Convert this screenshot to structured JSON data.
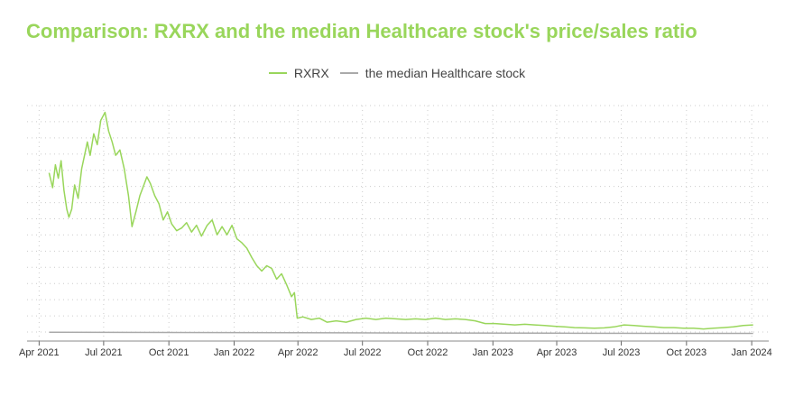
{
  "chart_data": {
    "type": "line",
    "title": "Comparison: RXRX and the median Healthcare stock's price/sales ratio",
    "xlabel": "",
    "ylabel": "",
    "x_ticks": [
      "Apr 2021",
      "Jul 2021",
      "Oct 2021",
      "Jan 2022",
      "Apr 2022",
      "Jul 2022",
      "Oct 2022",
      "Jan 2023",
      "Apr 2023",
      "Jul 2023",
      "Oct 2023",
      "Jan 2024"
    ],
    "x_range": [
      "2021-03-15",
      "2024-01-25"
    ],
    "ylim": [
      0,
      1750
    ],
    "grid": true,
    "legend_position": "top-center",
    "series": [
      {
        "name": "RXRX",
        "color": "#99d65b",
        "points": [
          [
            "2021-04-15",
            1250
          ],
          [
            "2021-04-20",
            1140
          ],
          [
            "2021-04-24",
            1310
          ],
          [
            "2021-04-28",
            1210
          ],
          [
            "2021-05-02",
            1340
          ],
          [
            "2021-05-06",
            1120
          ],
          [
            "2021-05-10",
            980
          ],
          [
            "2021-05-13",
            920
          ],
          [
            "2021-05-17",
            980
          ],
          [
            "2021-05-21",
            1160
          ],
          [
            "2021-05-26",
            1060
          ],
          [
            "2021-05-31",
            1280
          ],
          [
            "2021-06-04",
            1380
          ],
          [
            "2021-06-08",
            1480
          ],
          [
            "2021-06-12",
            1380
          ],
          [
            "2021-06-17",
            1540
          ],
          [
            "2021-06-22",
            1460
          ],
          [
            "2021-06-27",
            1640
          ],
          [
            "2021-07-03",
            1700
          ],
          [
            "2021-07-08",
            1560
          ],
          [
            "2021-07-13",
            1480
          ],
          [
            "2021-07-18",
            1380
          ],
          [
            "2021-07-24",
            1420
          ],
          [
            "2021-07-30",
            1280
          ],
          [
            "2021-08-05",
            1080
          ],
          [
            "2021-08-10",
            850
          ],
          [
            "2021-08-16",
            970
          ],
          [
            "2021-08-21",
            1080
          ],
          [
            "2021-08-26",
            1150
          ],
          [
            "2021-08-31",
            1220
          ],
          [
            "2021-09-05",
            1170
          ],
          [
            "2021-09-11",
            1080
          ],
          [
            "2021-09-17",
            1020
          ],
          [
            "2021-09-23",
            900
          ],
          [
            "2021-09-29",
            960
          ],
          [
            "2021-10-05",
            870
          ],
          [
            "2021-10-12",
            820
          ],
          [
            "2021-10-19",
            840
          ],
          [
            "2021-10-26",
            880
          ],
          [
            "2021-11-02",
            810
          ],
          [
            "2021-11-09",
            860
          ],
          [
            "2021-11-16",
            780
          ],
          [
            "2021-11-24",
            860
          ],
          [
            "2021-12-01",
            900
          ],
          [
            "2021-12-08",
            790
          ],
          [
            "2021-12-15",
            850
          ],
          [
            "2021-12-22",
            790
          ],
          [
            "2021-12-29",
            860
          ],
          [
            "2022-01-05",
            760
          ],
          [
            "2022-01-12",
            730
          ],
          [
            "2022-01-19",
            690
          ],
          [
            "2022-01-26",
            620
          ],
          [
            "2022-02-02",
            560
          ],
          [
            "2022-02-09",
            520
          ],
          [
            "2022-02-16",
            560
          ],
          [
            "2022-02-23",
            540
          ],
          [
            "2022-03-02",
            460
          ],
          [
            "2022-03-09",
            500
          ],
          [
            "2022-03-16",
            420
          ],
          [
            "2022-03-23",
            330
          ],
          [
            "2022-03-27",
            360
          ],
          [
            "2022-03-31",
            170
          ],
          [
            "2022-04-08",
            180
          ],
          [
            "2022-04-20",
            160
          ],
          [
            "2022-05-01",
            170
          ],
          [
            "2022-05-12",
            140
          ],
          [
            "2022-05-25",
            150
          ],
          [
            "2022-06-08",
            140
          ],
          [
            "2022-06-22",
            160
          ],
          [
            "2022-07-06",
            170
          ],
          [
            "2022-07-20",
            160
          ],
          [
            "2022-08-03",
            170
          ],
          [
            "2022-08-17",
            165
          ],
          [
            "2022-08-31",
            160
          ],
          [
            "2022-09-14",
            165
          ],
          [
            "2022-09-28",
            160
          ],
          [
            "2022-10-12",
            170
          ],
          [
            "2022-10-26",
            160
          ],
          [
            "2022-11-09",
            165
          ],
          [
            "2022-11-23",
            160
          ],
          [
            "2022-12-07",
            150
          ],
          [
            "2022-12-21",
            130
          ],
          [
            "2023-01-04",
            130
          ],
          [
            "2023-01-18",
            125
          ],
          [
            "2023-02-01",
            120
          ],
          [
            "2023-02-15",
            125
          ],
          [
            "2023-03-01",
            120
          ],
          [
            "2023-03-15",
            115
          ],
          [
            "2023-03-29",
            110
          ],
          [
            "2023-04-12",
            105
          ],
          [
            "2023-04-26",
            100
          ],
          [
            "2023-05-10",
            98
          ],
          [
            "2023-05-24",
            95
          ],
          [
            "2023-06-07",
            98
          ],
          [
            "2023-06-21",
            105
          ],
          [
            "2023-07-05",
            120
          ],
          [
            "2023-07-19",
            115
          ],
          [
            "2023-08-02",
            110
          ],
          [
            "2023-08-16",
            105
          ],
          [
            "2023-08-30",
            100
          ],
          [
            "2023-09-13",
            100
          ],
          [
            "2023-09-27",
            95
          ],
          [
            "2023-10-11",
            95
          ],
          [
            "2023-10-25",
            90
          ],
          [
            "2023-11-08",
            95
          ],
          [
            "2023-11-22",
            100
          ],
          [
            "2023-12-06",
            105
          ],
          [
            "2023-12-20",
            115
          ],
          [
            "2024-01-03",
            120
          ]
        ]
      },
      {
        "name": "the median Healthcare stock",
        "color": "#aaaaaa",
        "points": [
          [
            "2021-04-15",
            65
          ],
          [
            "2021-10-01",
            64
          ],
          [
            "2022-04-01",
            62
          ],
          [
            "2022-10-01",
            60
          ],
          [
            "2023-04-01",
            58
          ],
          [
            "2023-10-01",
            57
          ],
          [
            "2024-01-03",
            57
          ]
        ]
      }
    ]
  }
}
